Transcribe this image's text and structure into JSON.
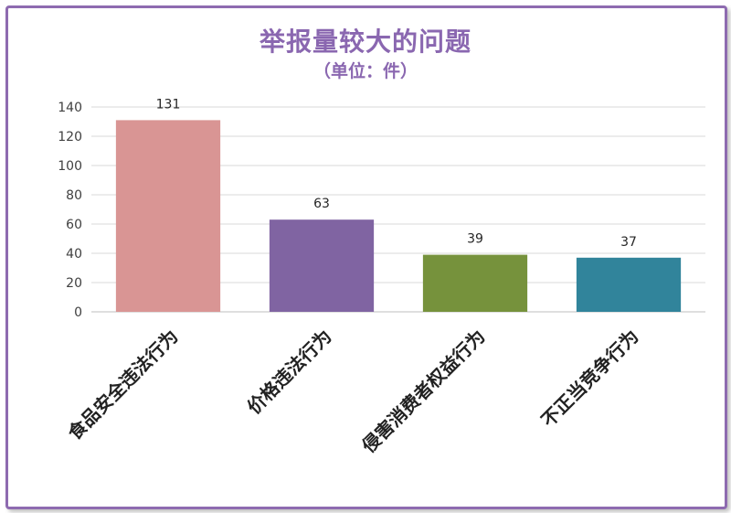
{
  "chart_data": {
    "type": "bar",
    "title": "举报量较大的问题",
    "subtitle": "（单位：件）",
    "categories": [
      "食品安全违法行为",
      "价格违法行为",
      "侵害消费者权益行为",
      "不正当竞争行为"
    ],
    "values": [
      131,
      63,
      39,
      37
    ],
    "colors": [
      "#d99594",
      "#8064a2",
      "#76923c",
      "#31849b"
    ],
    "ylim": [
      0,
      140
    ],
    "yticks": [
      0,
      20,
      40,
      60,
      80,
      100,
      120,
      140
    ],
    "xlabel": "",
    "ylabel": "",
    "grid": true,
    "legend": "none"
  }
}
